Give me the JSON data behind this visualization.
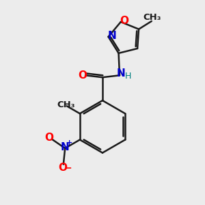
{
  "background_color": "#ececec",
  "bond_color": "#1a1a1a",
  "bond_width": 1.8,
  "atom_colors": {
    "O": "#ff0000",
    "N": "#0000cc",
    "H": "#008080",
    "C": "#1a1a1a",
    "plus": "#0000cc",
    "minus": "#ff0000"
  },
  "font_size_atoms": 11,
  "font_size_methyl": 9.5,
  "font_size_small": 9
}
